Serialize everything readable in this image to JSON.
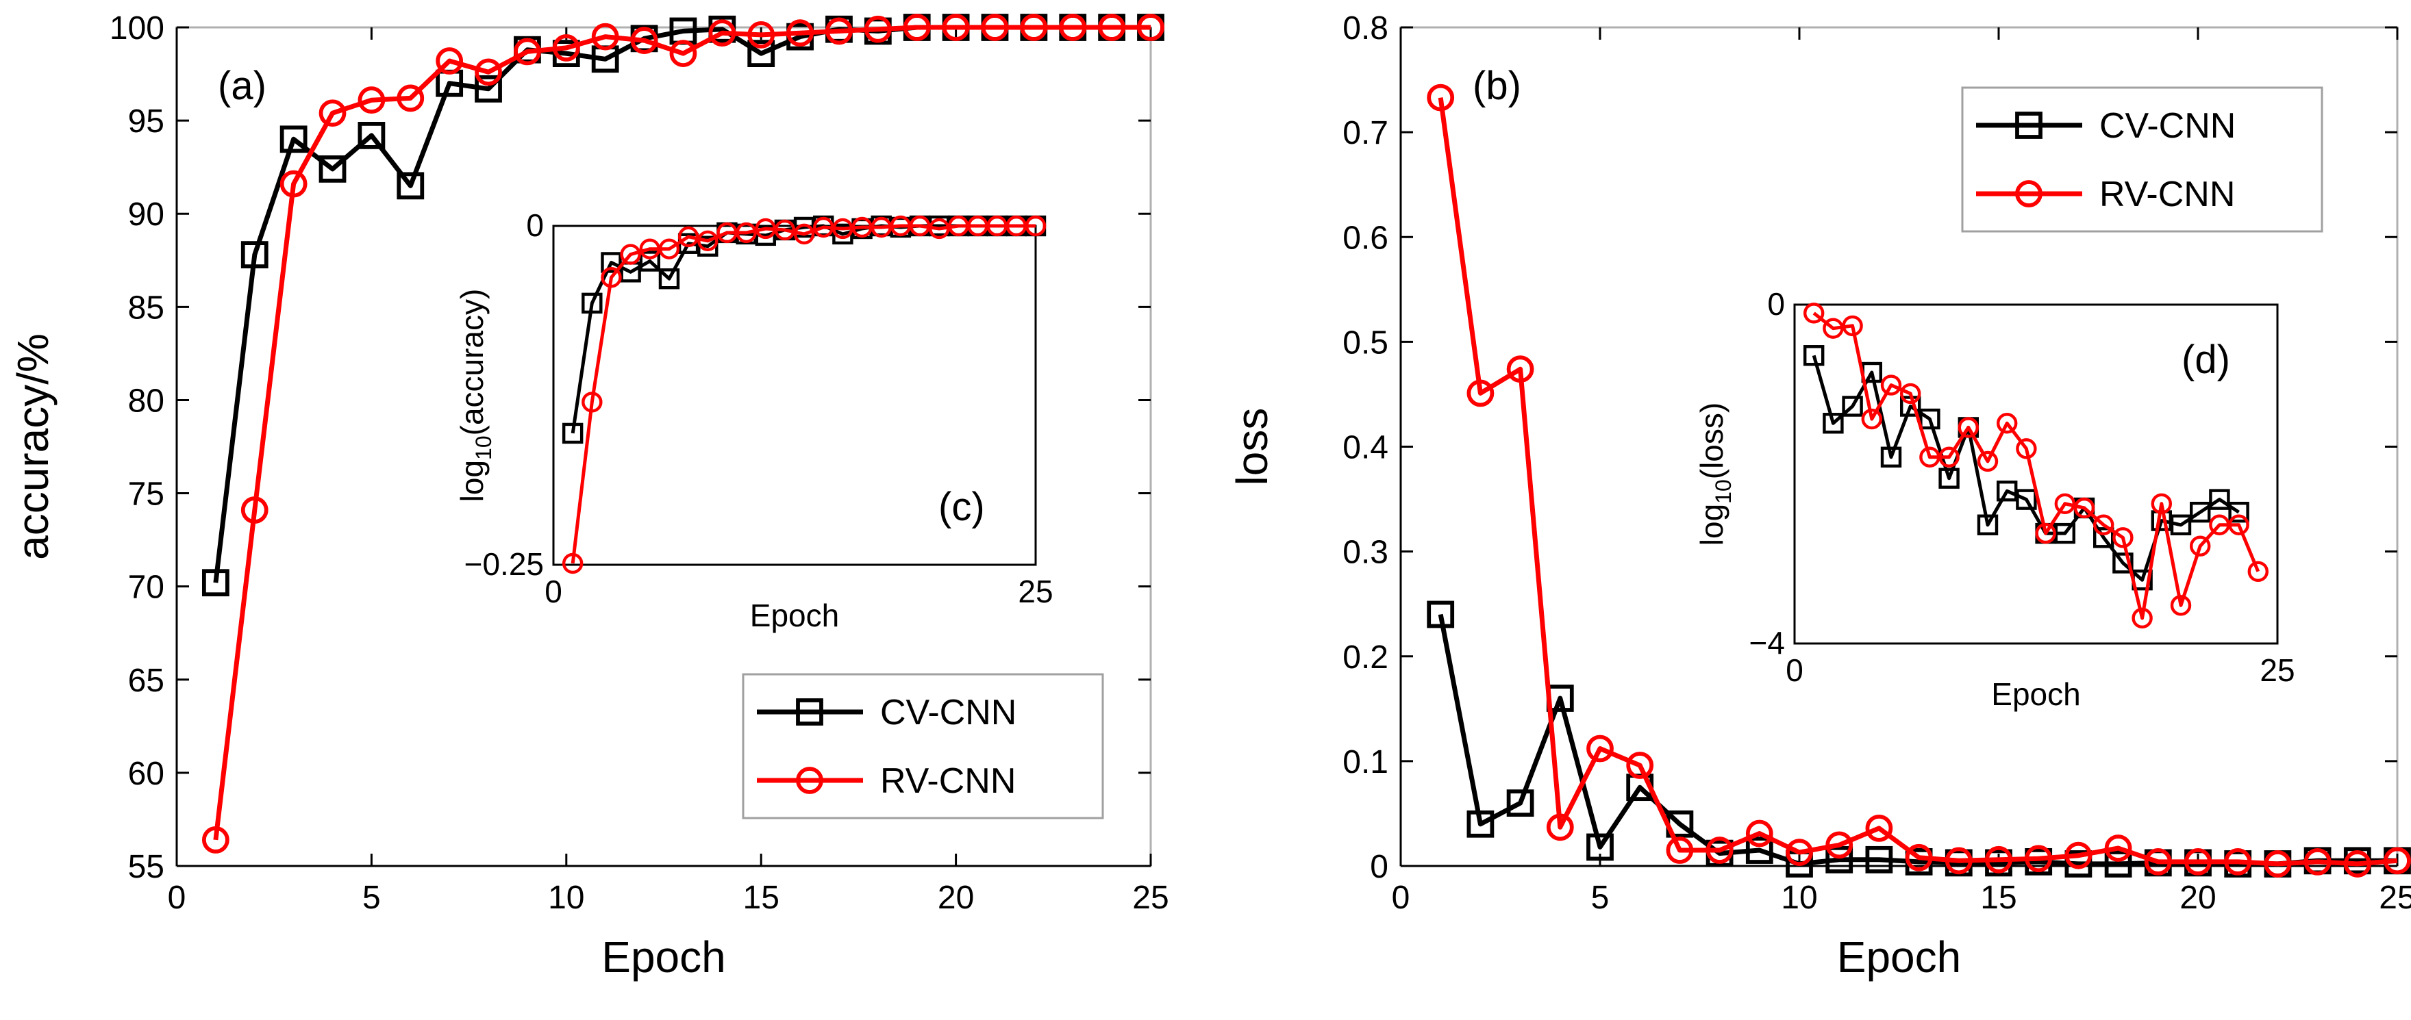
{
  "colors": {
    "cv": "#000000",
    "rv": "#ff0000",
    "frame": "#000000",
    "box": "#a0a0a0"
  },
  "chart_data": [
    {
      "id": "a",
      "type": "line",
      "panel_label": "(a)",
      "xlabel": "Epoch",
      "ylabel": "accuracy/%",
      "xlim": [
        0,
        25
      ],
      "ylim": [
        55,
        100
      ],
      "xticks": [
        "0",
        "5",
        "10",
        "15",
        "20",
        "25"
      ],
      "yticks": [
        "55",
        "60",
        "65",
        "70",
        "75",
        "80",
        "85",
        "90",
        "95",
        "100"
      ],
      "x": [
        1,
        2,
        3,
        4,
        5,
        6,
        7,
        8,
        9,
        10,
        11,
        12,
        13,
        14,
        15,
        16,
        17,
        18,
        19,
        20,
        21,
        22,
        23,
        24,
        25
      ],
      "series": [
        {
          "name": "CV-CNN",
          "marker": "square",
          "values": [
            70.2,
            87.8,
            94,
            92.4,
            94.2,
            91.5,
            97,
            96.7,
            98.8,
            98.6,
            98.3,
            99.4,
            99.8,
            99.9,
            98.6,
            99.5,
            99.9,
            99.8,
            100,
            100,
            100,
            100,
            100,
            100,
            100
          ]
        },
        {
          "name": "RV-CNN",
          "marker": "circle",
          "values": [
            56.4,
            74.1,
            91.6,
            95.4,
            96.1,
            96.2,
            98.2,
            97.6,
            98.7,
            98.9,
            99.5,
            99.3,
            98.6,
            99.7,
            99.6,
            99.7,
            99.8,
            99.9,
            100,
            100,
            100,
            100,
            100,
            100,
            100
          ]
        }
      ],
      "legend": {
        "entries": [
          "CV-CNN",
          "RV-CNN"
        ],
        "placement": "bottom-right"
      }
    },
    {
      "id": "b",
      "type": "line",
      "panel_label": "(b)",
      "xlabel": "Epoch",
      "ylabel": "loss",
      "xlim": [
        0,
        25
      ],
      "ylim": [
        0,
        0.8
      ],
      "xticks": [
        "0",
        "5",
        "10",
        "15",
        "20",
        "25"
      ],
      "yticks": [
        "0",
        "0.1",
        "0.2",
        "0.3",
        "0.4",
        "0.5",
        "0.6",
        "0.7",
        "0.8"
      ],
      "x": [
        1,
        2,
        3,
        4,
        5,
        6,
        7,
        8,
        9,
        10,
        11,
        12,
        13,
        14,
        15,
        16,
        17,
        18,
        19,
        20,
        21,
        22,
        23,
        24,
        25
      ],
      "series": [
        {
          "name": "CV-CNN",
          "marker": "square",
          "values": [
            0.24,
            0.04,
            0.06,
            0.16,
            0.018,
            0.075,
            0.04,
            0.012,
            0.015,
            0.002,
            0.006,
            0.006,
            0.004,
            0.003,
            0.003,
            0.004,
            0.002,
            0.002,
            0.003,
            0.003,
            0.002,
            0.002,
            0.005,
            0.005,
            0.005
          ]
        },
        {
          "name": "RV-CNN",
          "marker": "circle",
          "values": [
            0.733,
            0.451,
            0.474,
            0.037,
            0.112,
            0.096,
            0.015,
            0.015,
            0.031,
            0.013,
            0.02,
            0.036,
            0.008,
            0.005,
            0.006,
            0.007,
            0.01,
            0.017,
            0.004,
            0.004,
            0.004,
            0.002,
            0.004,
            0.002,
            0.005
          ]
        }
      ],
      "legend": {
        "entries": [
          "CV-CNN",
          "RV-CNN"
        ],
        "placement": "top-right"
      }
    },
    {
      "id": "c",
      "type": "line",
      "inset_of": "a",
      "panel_label": "(c)",
      "xlabel": "Epoch",
      "ylabel_parts": [
        "log",
        "10",
        "(accuracy)"
      ],
      "xlim": [
        0,
        25
      ],
      "ylim": [
        -0.25,
        0
      ],
      "xticks": [
        "0",
        "25"
      ],
      "yticks": [
        "−0.25",
        "0"
      ],
      "x": [
        1,
        2,
        3,
        4,
        5,
        6,
        7,
        8,
        9,
        10,
        11,
        12,
        13,
        14,
        15,
        16,
        17,
        18,
        19,
        20,
        21,
        22,
        23,
        24,
        25
      ],
      "series": [
        {
          "name": "CV-CNN",
          "marker": "square",
          "values": [
            -0.153,
            -0.057,
            -0.027,
            -0.034,
            -0.026,
            -0.039,
            -0.013,
            -0.015,
            -0.005,
            -0.006,
            -0.007,
            -0.003,
            -0.001,
            0,
            -0.006,
            -0.002,
            0,
            -0.001,
            0,
            0,
            0,
            0,
            0,
            0,
            0
          ]
        },
        {
          "name": "RV-CNN",
          "marker": "circle",
          "values": [
            -0.249,
            -0.13,
            -0.038,
            -0.021,
            -0.017,
            -0.017,
            -0.008,
            -0.011,
            -0.005,
            -0.005,
            -0.002,
            -0.003,
            -0.006,
            -0.001,
            -0.002,
            -0.001,
            -0.001,
            0,
            0,
            -0.002,
            0,
            0,
            0,
            0,
            0
          ]
        }
      ]
    },
    {
      "id": "d",
      "type": "line",
      "inset_of": "b",
      "panel_label": "(d)",
      "xlabel": "Epoch",
      "ylabel_parts": [
        "log",
        "10",
        "(loss)"
      ],
      "xlim": [
        0,
        25
      ],
      "ylim": [
        -4,
        0
      ],
      "xticks": [
        "0",
        "25"
      ],
      "yticks": [
        "−4",
        "0"
      ],
      "x": [
        1,
        2,
        3,
        4,
        5,
        6,
        7,
        8,
        9,
        10,
        11,
        12,
        13,
        14,
        15,
        16,
        17,
        18,
        19,
        20,
        21,
        22,
        23,
        24,
        25
      ],
      "series": [
        {
          "name": "CV-CNN",
          "marker": "square",
          "values": [
            -0.6,
            -1.4,
            -1.2,
            -0.8,
            -1.8,
            -1.2,
            -1.35,
            -2.05,
            -1.45,
            -2.6,
            -2.2,
            -2.3,
            -2.7,
            -2.7,
            -2.4,
            -2.75,
            -3.05,
            -3.25,
            -2.55,
            -2.6,
            -2.45,
            -2.3,
            -2.45,
            null,
            null
          ]
        },
        {
          "name": "RV-CNN",
          "marker": "circle",
          "values": [
            -0.1,
            -0.28,
            -0.25,
            -1.35,
            -0.95,
            -1.05,
            -1.8,
            -1.8,
            -1.45,
            -1.85,
            -1.4,
            -1.7,
            -2.7,
            -2.35,
            -2.4,
            -2.6,
            -2.75,
            -3.7,
            -2.35,
            -3.55,
            -2.85,
            -2.6,
            -2.6,
            -3.15,
            null
          ]
        }
      ]
    }
  ]
}
